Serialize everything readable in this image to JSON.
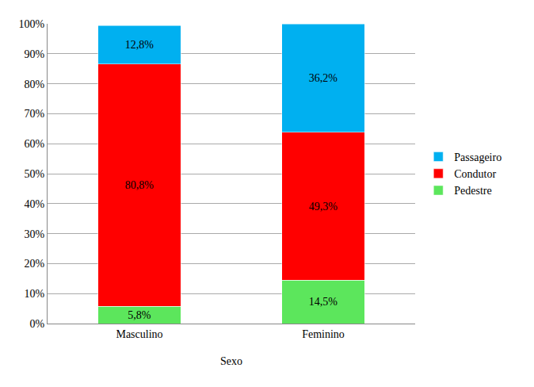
{
  "chart_data": {
    "type": "bar",
    "stacked": true,
    "x_label": "Sexo",
    "categories": [
      "Masculino",
      "Feminino"
    ],
    "series": [
      {
        "name": "Pedestre",
        "color": "#5CE65C",
        "values": [
          5.8,
          14.5
        ],
        "value_labels": [
          "5,8%",
          "14,5%"
        ]
      },
      {
        "name": "Condutor",
        "color": "#FF0000",
        "values": [
          80.8,
          49.3
        ],
        "value_labels": [
          "80,8%",
          "49,3%"
        ]
      },
      {
        "name": "Passageiro",
        "color": "#00B0F0",
        "values": [
          12.8,
          36.2
        ],
        "value_labels": [
          "12,8%",
          "36,2%"
        ]
      }
    ],
    "ylim": [
      0,
      100
    ],
    "yticks": [
      {
        "value": 0,
        "label": "0%"
      },
      {
        "value": 10,
        "label": "10%"
      },
      {
        "value": 20,
        "label": "20%"
      },
      {
        "value": 30,
        "label": "30%"
      },
      {
        "value": 40,
        "label": "40%"
      },
      {
        "value": 50,
        "label": "50%"
      },
      {
        "value": 60,
        "label": "60%"
      },
      {
        "value": 70,
        "label": "70%"
      },
      {
        "value": 80,
        "label": "80%"
      },
      {
        "value": 90,
        "label": "90%"
      },
      {
        "value": 100,
        "label": "100%"
      }
    ],
    "grid": true,
    "legend": "right",
    "data_labels": true
  }
}
